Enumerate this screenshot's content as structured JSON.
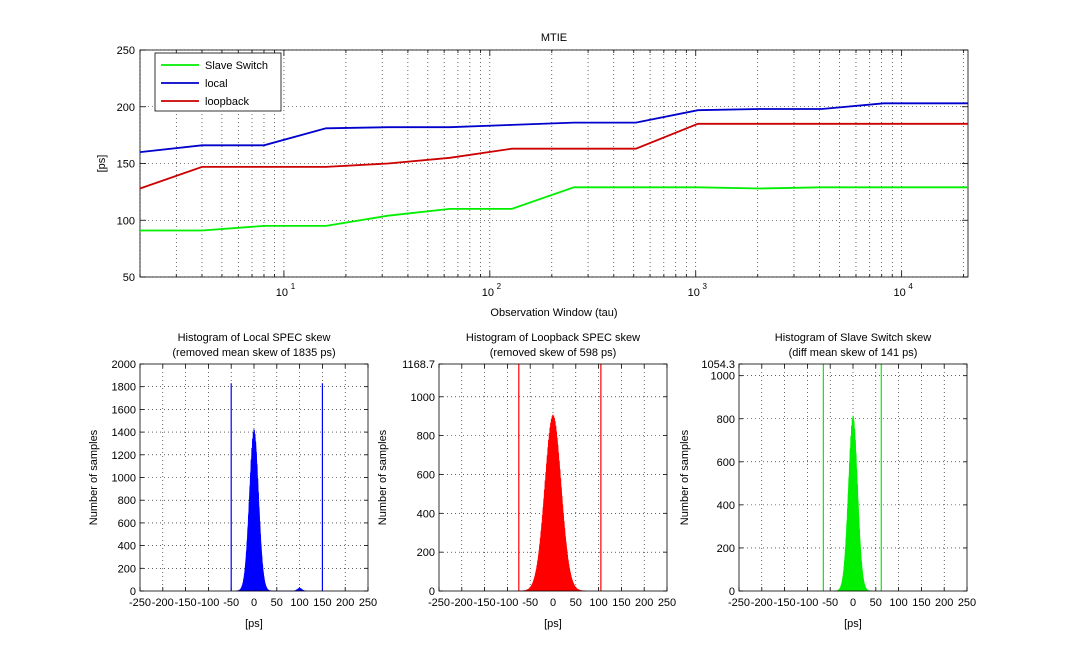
{
  "chart_data": [
    {
      "type": "line",
      "title": "MTIE",
      "xlabel": "Observation Window (tau)",
      "ylabel": "[ps]",
      "xscale": "log",
      "xlim": [
        2,
        21000
      ],
      "ylim": [
        50,
        250
      ],
      "yticks": [
        "50",
        "100",
        "150",
        "200",
        "250"
      ],
      "xticks": [
        {
          "v": 10,
          "base": "10",
          "exp": "1"
        },
        {
          "v": 100,
          "base": "10",
          "exp": "2"
        },
        {
          "v": 1000,
          "base": "10",
          "exp": "3"
        },
        {
          "v": 10000,
          "base": "10",
          "exp": "4"
        }
      ],
      "grid": true,
      "legend_position": "top-left",
      "series": [
        {
          "name": "Slave Switch",
          "color": "#00ee00",
          "x": [
            2,
            4,
            8,
            16,
            32,
            64,
            128,
            256,
            512,
            1024,
            2048,
            4096,
            8192,
            16384,
            21000
          ],
          "y": [
            91,
            91,
            95,
            95,
            104,
            110,
            110,
            129,
            129,
            129,
            128,
            129,
            129,
            129,
            129
          ]
        },
        {
          "name": "local",
          "color": "#0000cc",
          "x": [
            2,
            4,
            8,
            16,
            32,
            64,
            128,
            256,
            512,
            1024,
            2048,
            4096,
            8192,
            16384,
            21000
          ],
          "y": [
            160,
            166,
            166,
            181,
            182,
            182,
            184,
            186,
            186,
            197,
            198,
            198,
            203,
            203,
            203
          ]
        },
        {
          "name": "loopback",
          "color": "#cc0000",
          "x": [
            2,
            4,
            8,
            16,
            32,
            64,
            128,
            256,
            512,
            1024,
            2048,
            4096,
            8192,
            16384,
            21000
          ],
          "y": [
            128,
            147,
            147,
            147,
            150,
            155,
            163,
            163,
            163,
            185,
            185,
            185,
            185,
            185,
            185
          ]
        }
      ]
    },
    {
      "type": "histogram",
      "title": "Histogram of Local SPEC skew",
      "subtitle": "(removed mean skew of 1835 ps)",
      "xlabel": "[ps]",
      "ylabel": "Number of samples",
      "xlim": [
        -250,
        250
      ],
      "ylim": [
        0,
        2000
      ],
      "xticks": [
        "-250",
        "-200",
        "-150",
        "-100",
        "-50",
        "0",
        "50",
        "100",
        "150",
        "200",
        "250"
      ],
      "yticks": [
        "0",
        "200",
        "400",
        "600",
        "800",
        "1000",
        "1200",
        "1400",
        "1600",
        "1800",
        "2000"
      ],
      "color": "#0000ff",
      "peak_center": 0,
      "peak_height": 1400,
      "peak_sigma": 10,
      "secondary_bumps": [
        {
          "center": 100,
          "height": 25,
          "sigma": 5
        }
      ],
      "limit_lines": [
        -50,
        150
      ],
      "limit_height": 1830
    },
    {
      "type": "histogram",
      "title": "Histogram of Loopback SPEC skew",
      "subtitle": "(removed skew of 598 ps)",
      "xlabel": "[ps]",
      "ylabel": "Number of samples",
      "xlim": [
        -250,
        250
      ],
      "ylim": [
        0,
        1168.7
      ],
      "xticks": [
        "-250",
        "-200",
        "-150",
        "-100",
        "-50",
        "0",
        "50",
        "100",
        "150",
        "200",
        "250"
      ],
      "yticks": [
        "0",
        "200",
        "400",
        "600",
        "800",
        "1000",
        "1168.7"
      ],
      "color": "#ff0000",
      "peak_center": 0,
      "peak_height": 890,
      "peak_sigma": 18,
      "secondary_bumps": [],
      "limit_lines": [
        -75,
        105
      ],
      "limit_height": 1168.7
    },
    {
      "type": "histogram",
      "title": "Histogram of Slave Switch skew",
      "subtitle": "(diff mean skew of 141 ps)",
      "xlabel": "[ps]",
      "ylabel": "Number of samples",
      "xlim": [
        -250,
        250
      ],
      "ylim": [
        0,
        1054.3
      ],
      "xticks": [
        "-250",
        "-200",
        "-150",
        "-100",
        "-50",
        "0",
        "50",
        "100",
        "150",
        "200",
        "250"
      ],
      "yticks": [
        "0",
        "200",
        "400",
        "600",
        "800",
        "1000",
        "1054.3"
      ],
      "color": "#00ee00",
      "peak_center": 0,
      "peak_height": 800,
      "peak_sigma": 10,
      "secondary_bumps": [],
      "limit_lines": [
        -65,
        62
      ],
      "limit_height": 1054.3
    }
  ]
}
